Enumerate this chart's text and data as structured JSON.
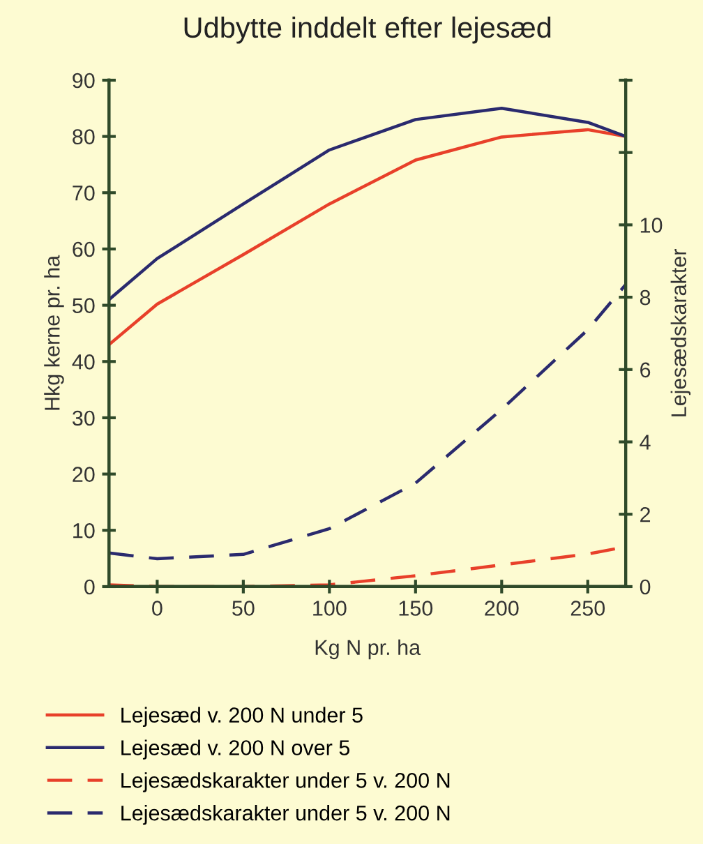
{
  "chart_data": {
    "type": "line",
    "title": "Udbytte inddelt efter lejesæd",
    "xlabel": "Kg N pr. ha",
    "ylabel": "Hkg kerne pr. ha",
    "y2label": "Lejesædskarakter",
    "x": [
      -28,
      0,
      50,
      100,
      150,
      200,
      250,
      272
    ],
    "series": [
      {
        "name": "Lejesæd v. 200 N under 5",
        "color": "#e8402a",
        "line_style": "solid",
        "values": [
          43,
          50.2,
          59,
          68,
          75.8,
          79.9,
          81.2,
          80
        ]
      },
      {
        "name": "Lejesæd v. 200 N over 5",
        "color": "#2a2a6e",
        "line_style": "solid",
        "values": [
          51,
          58.3,
          68,
          77.6,
          83,
          85,
          82.5,
          80
        ]
      },
      {
        "name": "Lejesædskarakter under 5 v. 200 N",
        "color": "#e8402a",
        "line_style": "dashed",
        "axis": "y2",
        "values": [
          0.05,
          0,
          0,
          0.05,
          0.3,
          0.6,
          0.9,
          1.1
        ]
      },
      {
        "name": "Lejesædskarakter under 5 v. 200 N",
        "color": "#2a2a6e",
        "line_style": "dashed",
        "axis": "y2",
        "values": [
          0.93,
          0.77,
          0.89,
          1.6,
          2.86,
          4.9,
          7.1,
          8.35
        ]
      }
    ],
    "xlim": [
      -28,
      272
    ],
    "xticks": [
      0,
      50,
      100,
      150,
      200,
      250
    ],
    "ylim": [
      0,
      90
    ],
    "yticks": [
      0,
      10,
      20,
      30,
      40,
      50,
      60,
      70,
      80,
      90
    ],
    "y2lim": [
      0,
      14
    ],
    "y2ticks": [
      0,
      2,
      4,
      6,
      8,
      10,
      {
        "value": 12,
        "label": null
      },
      {
        "value": 14,
        "label": null
      }
    ],
    "marker": "none",
    "grid": false,
    "legend": "bottom"
  }
}
